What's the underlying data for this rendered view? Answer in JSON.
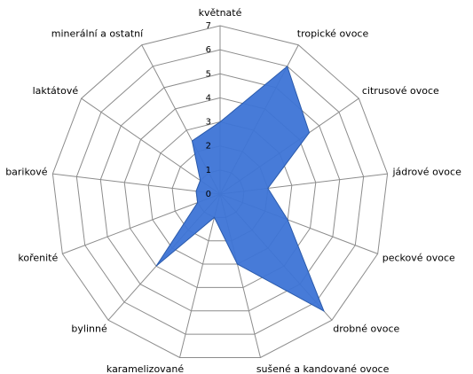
{
  "chart_data": {
    "type": "radar",
    "categories": [
      "květnaté",
      "tropické ovoce",
      "citrusové ovoce",
      "jádrové ovoce",
      "peckové ovoce",
      "drobné ovoce",
      "sušené a kandované ovoce",
      "karamelizované",
      "bylinné",
      "kořenité",
      "barikové",
      "laktátové",
      "minerální a ostatní"
    ],
    "series": [
      {
        "color": "#3d74d6",
        "values": [
          3,
          6,
          4.5,
          2,
          3,
          6.5,
          3,
          1,
          4,
          1,
          1,
          1,
          2.5
        ]
      }
    ],
    "rlim": [
      0,
      7
    ],
    "rticks": [
      0,
      1,
      2,
      3,
      4,
      5,
      6,
      7
    ],
    "grid": true
  }
}
